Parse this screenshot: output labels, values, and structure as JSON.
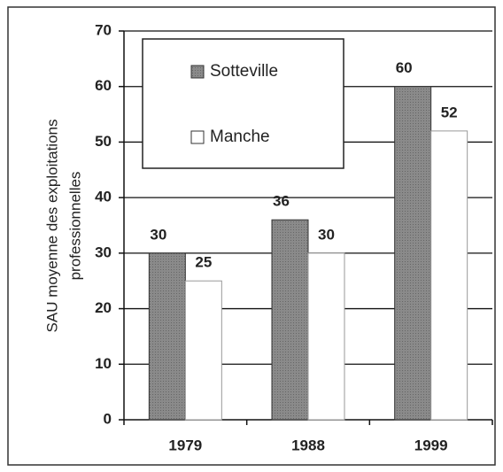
{
  "chart_data": {
    "type": "bar",
    "ylabel": [
      "SAU moyenne des exploitations",
      "professionnelles"
    ],
    "categories": [
      "1979",
      "1988",
      "1999"
    ],
    "series": [
      {
        "name": "Sotteville",
        "color": "#8a8a8a",
        "values": [
          30,
          36,
          60
        ]
      },
      {
        "name": "Manche",
        "color": "#ffffff",
        "values": [
          25,
          30,
          52
        ]
      }
    ],
    "ylim": [
      0,
      70
    ],
    "yticks": [
      0,
      10,
      20,
      30,
      40,
      50,
      60,
      70
    ],
    "grid": true,
    "legend": "top-left"
  }
}
